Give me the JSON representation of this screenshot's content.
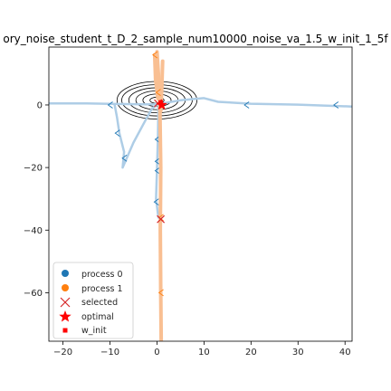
{
  "chart_data": {
    "type": "line",
    "title": "ory_noise_student_t_D_2_sample_num10000_noise_va_1.5_w_init_1_5f",
    "xlim": [
      -23,
      41.5
    ],
    "ylim": [
      -75.5,
      18.5
    ],
    "xticks": [
      -20,
      -10,
      0,
      10,
      20,
      30,
      40
    ],
    "xtick_labels": [
      "−20",
      "−10",
      "0",
      "10",
      "20",
      "30",
      "40"
    ],
    "yticks": [
      0,
      -20,
      -40,
      -60
    ],
    "ytick_labels": [
      "0",
      "−20",
      "−40",
      "−60"
    ],
    "grid": false,
    "legend_position": "lower left",
    "colors": {
      "process0": "#1f77b4",
      "process1": "#ff7f0e",
      "selected": "#d62728",
      "optimal": "#ff0000",
      "w_init": "#ff0000",
      "contour": "#000000",
      "path0": "#aecde6",
      "path1": "#f9bf92"
    },
    "legend": [
      {
        "label": "process 0",
        "marker": "circle",
        "color": "#1f77b4"
      },
      {
        "label": "process 1",
        "marker": "circle",
        "color": "#ff7f0e"
      },
      {
        "label": "selected",
        "marker": "x",
        "color": "#d62728"
      },
      {
        "label": "optimal",
        "marker": "star",
        "color": "#ff0000"
      },
      {
        "label": "w_init",
        "marker": "square",
        "color": "#ff0000"
      }
    ],
    "series": [
      {
        "label_ref": "process 0",
        "color": "#aecde6",
        "paths": [
          [
            [
              -23,
              0.5
            ],
            [
              -15,
              0.5
            ],
            [
              -8,
              0.3
            ],
            [
              -3,
              0.2
            ],
            [
              0,
              0.2
            ],
            [
              5,
              1.5
            ],
            [
              10,
              2.2
            ],
            [
              13,
              1.0
            ],
            [
              20,
              0.4
            ],
            [
              30,
              0.1
            ],
            [
              41.5,
              -0.5
            ]
          ],
          [
            [
              -9,
              0
            ],
            [
              -8.5,
              -4
            ],
            [
              -8,
              -9
            ],
            [
              -7,
              -15
            ],
            [
              -7.3,
              -20
            ],
            [
              -5,
              -12
            ],
            [
              -2.5,
              -5
            ],
            [
              -1,
              -1
            ],
            [
              0,
              0
            ]
          ],
          [
            [
              0.3,
              0
            ],
            [
              0.2,
              -10
            ],
            [
              0.0,
              -20
            ],
            [
              -0.2,
              -30
            ],
            [
              0.3,
              -36
            ]
          ]
        ],
        "arrows": [
          [
            -10,
            0
          ],
          [
            19,
            0
          ],
          [
            38,
            0
          ],
          [
            -8.5,
            -9
          ],
          [
            -7,
            -17
          ],
          [
            0,
            -11
          ],
          [
            0,
            -18
          ],
          [
            0,
            -21
          ],
          [
            -0.2,
            -31
          ]
        ]
      },
      {
        "label_ref": "process 1",
        "color": "#f9bf92",
        "paths": [
          [
            [
              0,
              17
            ],
            [
              0.3,
              10
            ],
            [
              0.6,
              0
            ],
            [
              0.8,
              -20
            ],
            [
              0.7,
              -40
            ],
            [
              0.8,
              -60
            ],
            [
              0.9,
              -75.5
            ]
          ],
          [
            [
              -0.5,
              16
            ],
            [
              -0.3,
              8
            ],
            [
              0.2,
              2
            ]
          ],
          [
            [
              1.2,
              14
            ],
            [
              1.0,
              5
            ],
            [
              0.8,
              -2
            ]
          ]
        ],
        "arrows": [
          [
            -0.5,
            16
          ],
          [
            0.2,
            4
          ],
          [
            0.8,
            -36
          ],
          [
            0.8,
            -60
          ]
        ]
      }
    ],
    "contours": {
      "center": [
        0,
        1.5
      ],
      "radii_x": [
        1.5,
        3.0,
        4.5,
        6.0,
        7.5,
        8.5
      ],
      "radii_y": [
        1.0,
        2.0,
        3.0,
        4.0,
        5.0,
        6.0
      ]
    },
    "selected_points": [
      [
        0.2,
        0.5
      ],
      [
        0.8,
        -36.5
      ]
    ],
    "optimal": [
      1,
      0
    ],
    "w_init": [
      0.8,
      0.8
    ]
  }
}
